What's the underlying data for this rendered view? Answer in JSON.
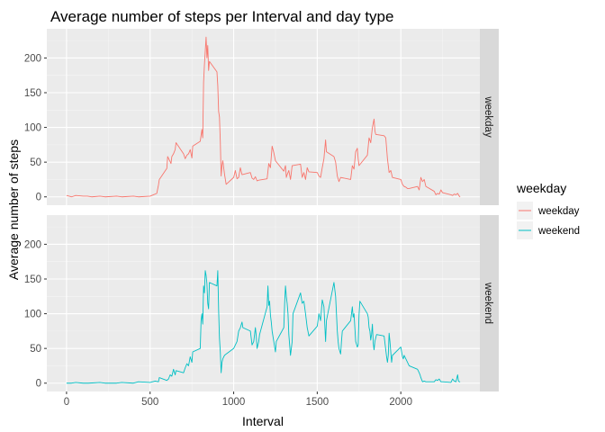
{
  "chart_data": {
    "type": "line",
    "title": "Average number of steps per Interval and day type",
    "xlabel": "Interval",
    "ylabel": "Average number of steps",
    "xlim": [
      -118,
      2473
    ],
    "ylim": [
      -12,
      242
    ],
    "x_ticks": [
      0,
      500,
      1000,
      1500,
      2000
    ],
    "y_ticks": [
      0,
      50,
      100,
      150,
      200
    ],
    "grid": true,
    "facet_strip_position": "right",
    "legend": {
      "title": "weekday",
      "placement": "right"
    },
    "series": [
      {
        "name": "weekday",
        "facet": "weekday",
        "color": "#F8766D",
        "points": [
          [
            0,
            2
          ],
          [
            15,
            1
          ],
          [
            30,
            0
          ],
          [
            55,
            2
          ],
          [
            100,
            1
          ],
          [
            125,
            1
          ],
          [
            150,
            0
          ],
          [
            200,
            1
          ],
          [
            230,
            0
          ],
          [
            300,
            1
          ],
          [
            330,
            0
          ],
          [
            400,
            1
          ],
          [
            430,
            0
          ],
          [
            500,
            1
          ],
          [
            520,
            3
          ],
          [
            540,
            5
          ],
          [
            550,
            17
          ],
          [
            555,
            25
          ],
          [
            600,
            41
          ],
          [
            605,
            58
          ],
          [
            615,
            53
          ],
          [
            625,
            48
          ],
          [
            630,
            58
          ],
          [
            640,
            62
          ],
          [
            650,
            68
          ],
          [
            655,
            78
          ],
          [
            700,
            62
          ],
          [
            710,
            55
          ],
          [
            720,
            60
          ],
          [
            730,
            62
          ],
          [
            740,
            68
          ],
          [
            750,
            56
          ],
          [
            755,
            73
          ],
          [
            800,
            80
          ],
          [
            810,
            97
          ],
          [
            815,
            85
          ],
          [
            820,
            165
          ],
          [
            825,
            190
          ],
          [
            830,
            210
          ],
          [
            835,
            230
          ],
          [
            840,
            200
          ],
          [
            845,
            218
          ],
          [
            850,
            182
          ],
          [
            855,
            195
          ],
          [
            900,
            180
          ],
          [
            905,
            160
          ],
          [
            910,
            123
          ],
          [
            915,
            115
          ],
          [
            920,
            80
          ],
          [
            925,
            30
          ],
          [
            930,
            45
          ],
          [
            935,
            52
          ],
          [
            945,
            33
          ],
          [
            955,
            18
          ],
          [
            1000,
            28
          ],
          [
            1010,
            38
          ],
          [
            1020,
            26
          ],
          [
            1030,
            28
          ],
          [
            1040,
            42
          ],
          [
            1050,
            32
          ],
          [
            1100,
            35
          ],
          [
            1110,
            27
          ],
          [
            1120,
            25
          ],
          [
            1130,
            29
          ],
          [
            1140,
            23
          ],
          [
            1150,
            24
          ],
          [
            1200,
            26
          ],
          [
            1210,
            48
          ],
          [
            1220,
            42
          ],
          [
            1230,
            73
          ],
          [
            1240,
            64
          ],
          [
            1250,
            52
          ],
          [
            1300,
            37
          ],
          [
            1310,
            45
          ],
          [
            1315,
            28
          ],
          [
            1320,
            32
          ],
          [
            1330,
            38
          ],
          [
            1340,
            25
          ],
          [
            1350,
            45
          ],
          [
            1400,
            47
          ],
          [
            1410,
            28
          ],
          [
            1420,
            35
          ],
          [
            1430,
            25
          ],
          [
            1440,
            42
          ],
          [
            1450,
            36
          ],
          [
            1500,
            35
          ],
          [
            1510,
            30
          ],
          [
            1520,
            28
          ],
          [
            1530,
            42
          ],
          [
            1540,
            55
          ],
          [
            1550,
            82
          ],
          [
            1555,
            65
          ],
          [
            1600,
            58
          ],
          [
            1610,
            50
          ],
          [
            1620,
            30
          ],
          [
            1630,
            22
          ],
          [
            1640,
            28
          ],
          [
            1700,
            25
          ],
          [
            1710,
            45
          ],
          [
            1720,
            40
          ],
          [
            1730,
            65
          ],
          [
            1740,
            70
          ],
          [
            1745,
            55
          ],
          [
            1750,
            45
          ],
          [
            1800,
            60
          ],
          [
            1810,
            85
          ],
          [
            1820,
            78
          ],
          [
            1830,
            100
          ],
          [
            1840,
            112
          ],
          [
            1845,
            95
          ],
          [
            1850,
            90
          ],
          [
            1900,
            88
          ],
          [
            1910,
            85
          ],
          [
            1920,
            55
          ],
          [
            1930,
            35
          ],
          [
            1940,
            38
          ],
          [
            1950,
            28
          ],
          [
            2000,
            25
          ],
          [
            2010,
            18
          ],
          [
            2020,
            15
          ],
          [
            2030,
            14
          ],
          [
            2040,
            12
          ],
          [
            2050,
            12
          ],
          [
            2100,
            15
          ],
          [
            2110,
            10
          ],
          [
            2120,
            28
          ],
          [
            2130,
            22
          ],
          [
            2140,
            25
          ],
          [
            2150,
            15
          ],
          [
            2200,
            8
          ],
          [
            2210,
            3
          ],
          [
            2220,
            5
          ],
          [
            2230,
            4
          ],
          [
            2240,
            10
          ],
          [
            2250,
            6
          ],
          [
            2300,
            3
          ],
          [
            2310,
            2
          ],
          [
            2320,
            4
          ],
          [
            2330,
            3
          ],
          [
            2340,
            5
          ],
          [
            2350,
            1
          ],
          [
            2355,
            0
          ]
        ]
      },
      {
        "name": "weekend",
        "facet": "weekend",
        "color": "#00BFC4",
        "points": [
          [
            0,
            0
          ],
          [
            30,
            0
          ],
          [
            55,
            1
          ],
          [
            100,
            0
          ],
          [
            130,
            0
          ],
          [
            200,
            1
          ],
          [
            230,
            0
          ],
          [
            300,
            0
          ],
          [
            330,
            1
          ],
          [
            400,
            0
          ],
          [
            430,
            2
          ],
          [
            500,
            1
          ],
          [
            530,
            3
          ],
          [
            550,
            2
          ],
          [
            555,
            8
          ],
          [
            600,
            4
          ],
          [
            610,
            6
          ],
          [
            620,
            12
          ],
          [
            630,
            10
          ],
          [
            640,
            20
          ],
          [
            650,
            12
          ],
          [
            655,
            18
          ],
          [
            700,
            15
          ],
          [
            710,
            22
          ],
          [
            720,
            28
          ],
          [
            730,
            25
          ],
          [
            740,
            38
          ],
          [
            750,
            30
          ],
          [
            755,
            45
          ],
          [
            800,
            50
          ],
          [
            805,
            90
          ],
          [
            810,
            100
          ],
          [
            815,
            85
          ],
          [
            820,
            140
          ],
          [
            825,
            130
          ],
          [
            830,
            162
          ],
          [
            835,
            155
          ],
          [
            840,
            143
          ],
          [
            845,
            115
          ],
          [
            850,
            107
          ],
          [
            855,
            145
          ],
          [
            900,
            140
          ],
          [
            905,
            162
          ],
          [
            910,
            105
          ],
          [
            915,
            65
          ],
          [
            920,
            45
          ],
          [
            925,
            15
          ],
          [
            930,
            30
          ],
          [
            935,
            35
          ],
          [
            945,
            40
          ],
          [
            955,
            42
          ],
          [
            1000,
            50
          ],
          [
            1010,
            55
          ],
          [
            1020,
            60
          ],
          [
            1030,
            75
          ],
          [
            1040,
            80
          ],
          [
            1050,
            88
          ],
          [
            1055,
            80
          ],
          [
            1100,
            75
          ],
          [
            1110,
            55
          ],
          [
            1120,
            60
          ],
          [
            1130,
            80
          ],
          [
            1135,
            68
          ],
          [
            1140,
            50
          ],
          [
            1150,
            60
          ],
          [
            1155,
            70
          ],
          [
            1200,
            110
          ],
          [
            1205,
            140
          ],
          [
            1210,
            112
          ],
          [
            1215,
            118
          ],
          [
            1220,
            98
          ],
          [
            1225,
            88
          ],
          [
            1230,
            75
          ],
          [
            1240,
            60
          ],
          [
            1250,
            45
          ],
          [
            1255,
            60
          ],
          [
            1300,
            80
          ],
          [
            1305,
            115
          ],
          [
            1310,
            140
          ],
          [
            1315,
            125
          ],
          [
            1320,
            115
          ],
          [
            1325,
            100
          ],
          [
            1330,
            70
          ],
          [
            1340,
            40
          ],
          [
            1350,
            60
          ],
          [
            1355,
            100
          ],
          [
            1400,
            130
          ],
          [
            1410,
            115
          ],
          [
            1420,
            118
          ],
          [
            1430,
            100
          ],
          [
            1435,
            90
          ],
          [
            1440,
            80
          ],
          [
            1450,
            68
          ],
          [
            1500,
            82
          ],
          [
            1510,
            100
          ],
          [
            1520,
            90
          ],
          [
            1530,
            120
          ],
          [
            1540,
            110
          ],
          [
            1545,
            85
          ],
          [
            1550,
            60
          ],
          [
            1555,
            90
          ],
          [
            1600,
            145
          ],
          [
            1610,
            125
          ],
          [
            1615,
            100
          ],
          [
            1620,
            75
          ],
          [
            1625,
            60
          ],
          [
            1630,
            50
          ],
          [
            1640,
            42
          ],
          [
            1645,
            60
          ],
          [
            1650,
            75
          ],
          [
            1700,
            90
          ],
          [
            1710,
            110
          ],
          [
            1715,
            95
          ],
          [
            1720,
            100
          ],
          [
            1725,
            80
          ],
          [
            1730,
            60
          ],
          [
            1740,
            52
          ],
          [
            1745,
            55
          ],
          [
            1750,
            98
          ],
          [
            1755,
            118
          ],
          [
            1800,
            100
          ],
          [
            1805,
            95
          ],
          [
            1810,
            80
          ],
          [
            1815,
            75
          ],
          [
            1820,
            62
          ],
          [
            1825,
            70
          ],
          [
            1830,
            85
          ],
          [
            1835,
            58
          ],
          [
            1840,
            48
          ],
          [
            1845,
            60
          ],
          [
            1850,
            65
          ],
          [
            1855,
            70
          ],
          [
            1900,
            68
          ],
          [
            1905,
            58
          ],
          [
            1910,
            48
          ],
          [
            1915,
            38
          ],
          [
            1920,
            30
          ],
          [
            1925,
            40
          ],
          [
            1930,
            72
          ],
          [
            1935,
            60
          ],
          [
            1940,
            45
          ],
          [
            1945,
            30
          ],
          [
            1950,
            40
          ],
          [
            2000,
            52
          ],
          [
            2005,
            45
          ],
          [
            2010,
            38
          ],
          [
            2015,
            35
          ],
          [
            2020,
            40
          ],
          [
            2030,
            35
          ],
          [
            2040,
            30
          ],
          [
            2050,
            25
          ],
          [
            2100,
            20
          ],
          [
            2110,
            15
          ],
          [
            2115,
            12
          ],
          [
            2120,
            8
          ],
          [
            2130,
            2
          ],
          [
            2140,
            3
          ],
          [
            2150,
            2
          ],
          [
            2200,
            2
          ],
          [
            2210,
            5
          ],
          [
            2220,
            4
          ],
          [
            2230,
            6
          ],
          [
            2240,
            2
          ],
          [
            2250,
            2
          ],
          [
            2300,
            1
          ],
          [
            2310,
            6
          ],
          [
            2320,
            3
          ],
          [
            2330,
            2
          ],
          [
            2340,
            12
          ],
          [
            2345,
            3
          ],
          [
            2350,
            2
          ],
          [
            2355,
            2
          ]
        ]
      }
    ]
  }
}
